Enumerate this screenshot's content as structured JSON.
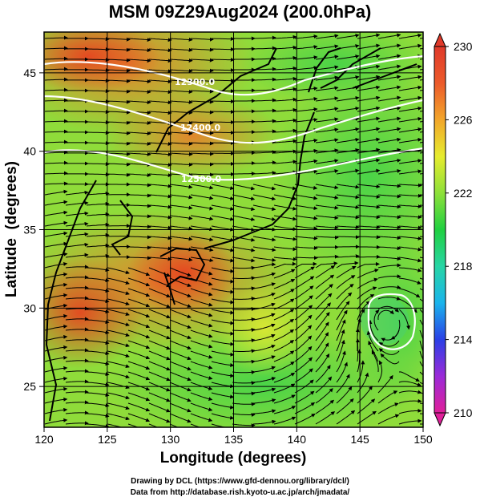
{
  "title": "MSM 09Z29Aug2024 (200.0hPa)",
  "axes": {
    "xlabel": "Longitude (degrees)",
    "ylabel": "Latitude  (degrees)",
    "xticks": [
      "120",
      "125",
      "130",
      "135",
      "140",
      "145",
      "150"
    ],
    "yticks": [
      "25",
      "30",
      "35",
      "40",
      "45"
    ],
    "xlim": [
      120,
      150
    ],
    "ylim": [
      22.4,
      47.6
    ]
  },
  "colorbar": {
    "labels": [
      "230",
      "226",
      "222",
      "218",
      "214",
      "210"
    ],
    "range": [
      210,
      230
    ],
    "colors": [
      "#e0209a",
      "#9b2ad8",
      "#2a40e6",
      "#1ab4ec",
      "#27d5a5",
      "#20d040",
      "#8ee03a",
      "#e6ec2e",
      "#f2a62a",
      "#ec5a2a",
      "#e03a2a"
    ]
  },
  "contours": {
    "labels": [
      "12300.0",
      "12400.0",
      "12500.0"
    ],
    "color": "#ffffff"
  },
  "credits": {
    "line1": "Drawing by DCL (https://www.gfd-dennou.org/library/dcl/)",
    "line2": "Data from http://database.rish.kyoto-u.ac.jp/arch/jmadata/"
  }
}
